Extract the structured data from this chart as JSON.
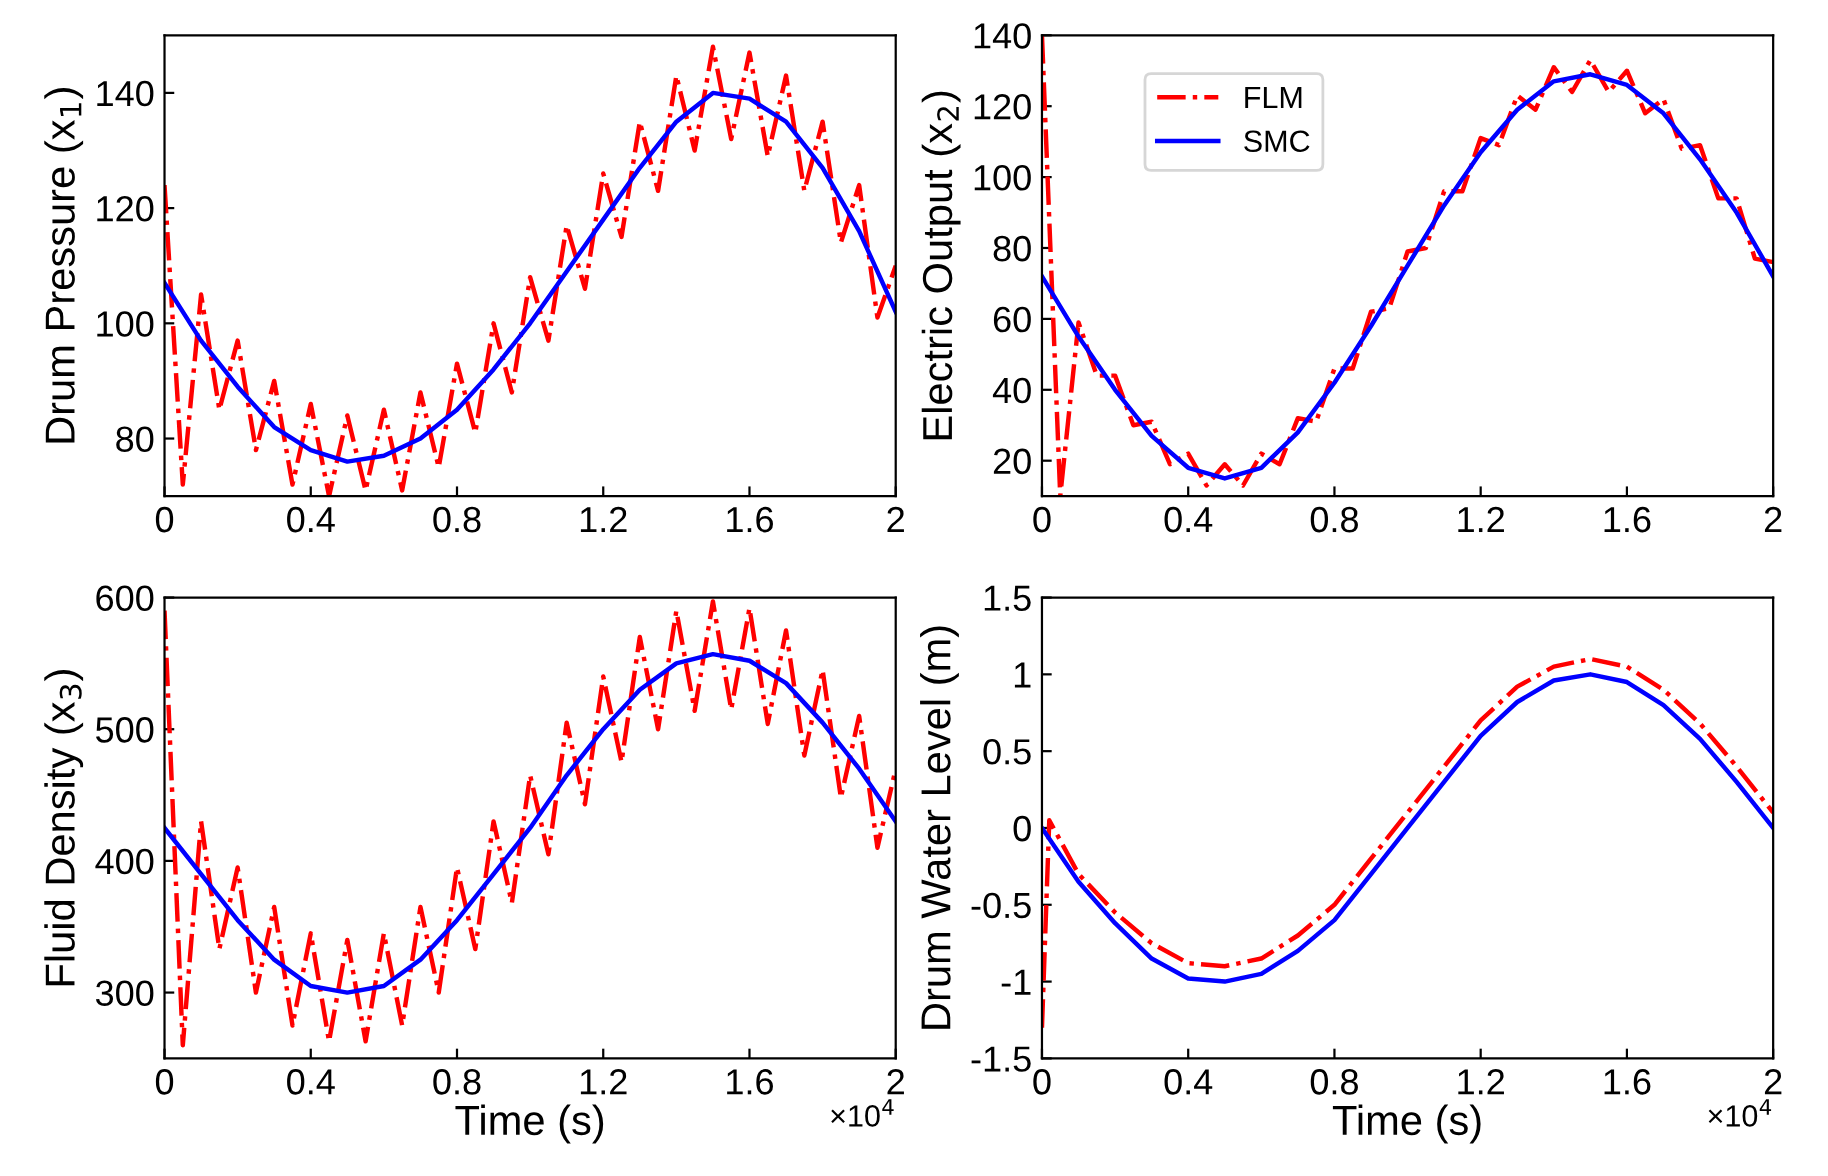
{
  "chart_data": [
    {
      "type": "line",
      "ylabel": "Drum Pressure (x$_{1}$)",
      "xlim": [
        0,
        2
      ],
      "xticks": [
        0,
        0.4,
        0.8,
        1.2,
        1.6,
        2
      ],
      "ylim": [
        70,
        150
      ],
      "yticks": [
        80,
        100,
        120,
        140
      ],
      "grid": false,
      "x": [
        0,
        0.1,
        0.2,
        0.3,
        0.4,
        0.5,
        0.6,
        0.7,
        0.8,
        0.9,
        1.0,
        1.1,
        1.2,
        1.3,
        1.4,
        1.5,
        1.6,
        1.7,
        1.8,
        1.9,
        2.0
      ],
      "series": [
        {
          "color": "#ff0000",
          "line_style": "dashdot",
          "x": [
            0,
            0.05,
            0.1,
            0.15,
            0.2,
            0.25,
            0.3,
            0.35,
            0.4,
            0.45,
            0.5,
            0.55,
            0.6,
            0.65,
            0.7,
            0.75,
            0.8,
            0.85,
            0.9,
            0.95,
            1.0,
            1.05,
            1.1,
            1.15,
            1.2,
            1.25,
            1.3,
            1.35,
            1.4,
            1.45,
            1.5,
            1.55,
            1.6,
            1.65,
            1.7,
            1.75,
            1.8,
            1.85,
            1.9,
            1.95,
            2.0
          ],
          "values": [
            124,
            72,
            105,
            85,
            97,
            78,
            90,
            72,
            86,
            70,
            84,
            71,
            85,
            71,
            88,
            75,
            93,
            81,
            100,
            88,
            108,
            97,
            117,
            106,
            126,
            115,
            135,
            123,
            143,
            130,
            148,
            132,
            147,
            129,
            143,
            123,
            135,
            114,
            124,
            101,
            110
          ]
        },
        {
          "color": "#0000ff",
          "line_style": "solid",
          "values": [
            107,
            97,
            89,
            82,
            78,
            76,
            77,
            80,
            85,
            92,
            100,
            109,
            118,
            127,
            135,
            140,
            139,
            135,
            127,
            116,
            102
          ]
        }
      ]
    },
    {
      "type": "line",
      "ylabel": "Electric Output (x$_{2}$)",
      "xlim": [
        0,
        2
      ],
      "xticks": [
        0,
        0.4,
        0.8,
        1.2,
        1.6,
        2
      ],
      "ylim": [
        10,
        140
      ],
      "yticks": [
        20,
        40,
        60,
        80,
        100,
        120,
        140
      ],
      "legend": "top left",
      "grid": false,
      "x": [
        0,
        0.1,
        0.2,
        0.3,
        0.4,
        0.5,
        0.6,
        0.7,
        0.8,
        0.9,
        1.0,
        1.1,
        1.2,
        1.3,
        1.4,
        1.5,
        1.6,
        1.7,
        1.8,
        1.9,
        2.0
      ],
      "series": [
        {
          "name": "FLM",
          "color": "#ff0000",
          "line_style": "dashdot",
          "x": [
            0,
            0.05,
            0.1,
            0.15,
            0.2,
            0.25,
            0.3,
            0.35,
            0.4,
            0.45,
            0.5,
            0.55,
            0.6,
            0.65,
            0.7,
            0.75,
            0.8,
            0.85,
            0.9,
            0.95,
            1.0,
            1.05,
            1.1,
            1.15,
            1.2,
            1.25,
            1.3,
            1.35,
            1.4,
            1.45,
            1.5,
            1.55,
            1.6,
            1.65,
            1.7,
            1.75,
            1.8,
            1.85,
            1.9,
            1.95,
            2.0
          ],
          "values": [
            140,
            10,
            59,
            44,
            44,
            30,
            31,
            19,
            22,
            13,
            19,
            13,
            22,
            19,
            32,
            31,
            46,
            46,
            62,
            63,
            79,
            80,
            96,
            96,
            111,
            109,
            123,
            119,
            131,
            124,
            133,
            124,
            130,
            118,
            122,
            108,
            109,
            94,
            94,
            77,
            76
          ]
        },
        {
          "name": "SMC",
          "color": "#0000ff",
          "line_style": "solid",
          "values": [
            72,
            55,
            40,
            27,
            18,
            15,
            18,
            28,
            42,
            58,
            75,
            92,
            107,
            119,
            127,
            129,
            126,
            118,
            105,
            90,
            72
          ]
        }
      ]
    },
    {
      "type": "line",
      "ylabel": "Fluid Density (x$_{3}$)",
      "xlabel": "Time (s)",
      "annotations": [
        "×10$^{4}$"
      ],
      "xlim": [
        0,
        2
      ],
      "xticks": [
        0,
        0.4,
        0.8,
        1.2,
        1.6,
        2
      ],
      "ylim": [
        250,
        600
      ],
      "yticks": [
        300,
        400,
        500,
        600
      ],
      "grid": false,
      "x": [
        0,
        0.1,
        0.2,
        0.3,
        0.4,
        0.5,
        0.6,
        0.7,
        0.8,
        0.9,
        1.0,
        1.1,
        1.2,
        1.3,
        1.4,
        1.5,
        1.6,
        1.7,
        1.8,
        1.9,
        2.0
      ],
      "series": [
        {
          "color": "#ff0000",
          "line_style": "dashdot",
          "x": [
            0,
            0.05,
            0.1,
            0.15,
            0.2,
            0.25,
            0.3,
            0.35,
            0.4,
            0.45,
            0.5,
            0.55,
            0.6,
            0.65,
            0.7,
            0.75,
            0.8,
            0.85,
            0.9,
            0.95,
            1.0,
            1.05,
            1.1,
            1.15,
            1.2,
            1.25,
            1.3,
            1.35,
            1.4,
            1.45,
            1.5,
            1.55,
            1.6,
            1.65,
            1.7,
            1.75,
            1.8,
            1.85,
            1.9,
            1.95,
            2.0
          ],
          "values": [
            590,
            260,
            430,
            333,
            395,
            300,
            365,
            275,
            345,
            263,
            340,
            263,
            345,
            275,
            365,
            300,
            395,
            333,
            430,
            368,
            465,
            405,
            505,
            443,
            540,
            475,
            570,
            500,
            590,
            514,
            597,
            515,
            592,
            504,
            575,
            480,
            545,
            448,
            510,
            410,
            470
          ]
        },
        {
          "color": "#0000ff",
          "line_style": "solid",
          "values": [
            425,
            390,
            355,
            325,
            305,
            300,
            305,
            325,
            355,
            390,
            425,
            465,
            500,
            530,
            550,
            557,
            552,
            535,
            505,
            470,
            430
          ]
        }
      ]
    },
    {
      "type": "line",
      "ylabel": "Drum Water Level (m)",
      "xlabel": "Time (s)",
      "annotations": [
        "×10$^{4}$"
      ],
      "xlim": [
        0,
        2
      ],
      "xticks": [
        0,
        0.4,
        0.8,
        1.2,
        1.6,
        2
      ],
      "ylim": [
        -1.5,
        1.5
      ],
      "yticks": [
        -1.5,
        -1,
        -0.5,
        0,
        0.5,
        1,
        1.5
      ],
      "grid": false,
      "x": [
        0,
        0.1,
        0.2,
        0.3,
        0.4,
        0.5,
        0.6,
        0.7,
        0.8,
        0.9,
        1.0,
        1.1,
        1.2,
        1.3,
        1.4,
        1.5,
        1.6,
        1.7,
        1.8,
        1.9,
        2.0
      ],
      "series": [
        {
          "color": "#ff0000",
          "line_style": "dashdot",
          "x": [
            0,
            0.02,
            0.1,
            0.2,
            0.3,
            0.4,
            0.5,
            0.6,
            0.7,
            0.8,
            0.9,
            1.0,
            1.1,
            1.2,
            1.3,
            1.4,
            1.5,
            1.6,
            1.7,
            1.8,
            1.9,
            2.0
          ],
          "values": [
            -1.3,
            0.05,
            -0.3,
            -0.55,
            -0.75,
            -0.88,
            -0.9,
            -0.85,
            -0.7,
            -0.5,
            -0.2,
            0.1,
            0.4,
            0.7,
            0.92,
            1.05,
            1.1,
            1.05,
            0.9,
            0.68,
            0.4,
            0.1
          ]
        },
        {
          "color": "#0000ff",
          "line_style": "solid",
          "values": [
            0,
            -0.35,
            -0.62,
            -0.85,
            -0.98,
            -1.0,
            -0.95,
            -0.8,
            -0.6,
            -0.3,
            0,
            0.3,
            0.6,
            0.82,
            0.96,
            1.0,
            0.95,
            0.8,
            0.58,
            0.3,
            0
          ]
        }
      ]
    }
  ]
}
